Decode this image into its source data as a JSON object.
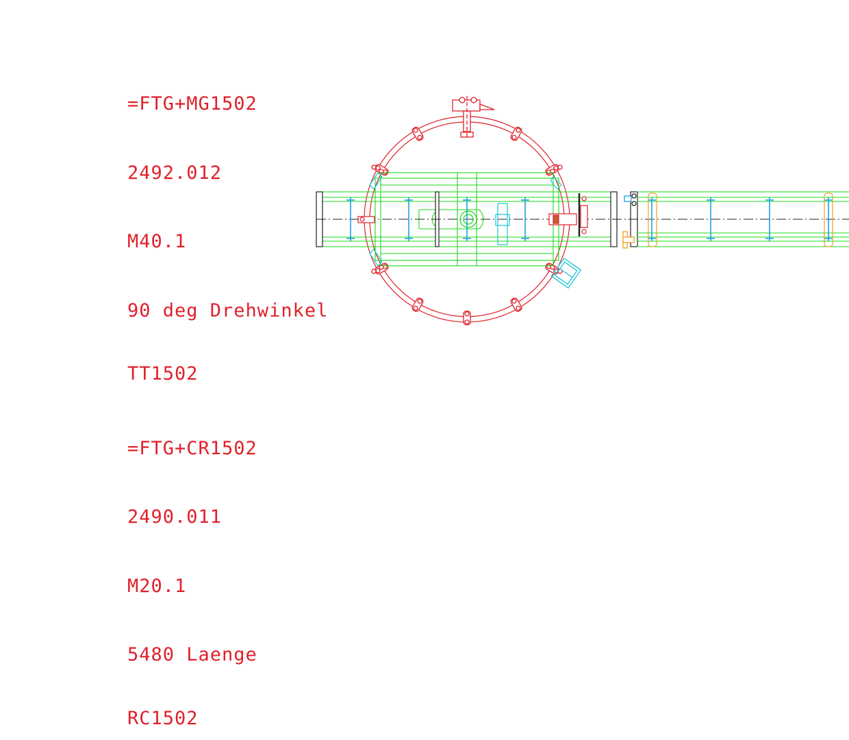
{
  "diagram": {
    "turntable_labels": [
      "=FTG+MG1502",
      "2492.012",
      "M40.1",
      "90 deg Drehwinkel",
      "TT1502"
    ],
    "conveyor_labels": [
      "=FTG+CR1502",
      "2490.011",
      "M20.1",
      "5480 Laenge",
      "RC1502"
    ],
    "colors": {
      "text": "#e0202a",
      "ring": "#e0202a",
      "frame": "#18d818",
      "rollers": "#1aa0e8",
      "cyan_device": "#19c6d6",
      "orange_parts": "#f0a020",
      "centerline": "#000000",
      "dark_outline": "#202020"
    }
  }
}
